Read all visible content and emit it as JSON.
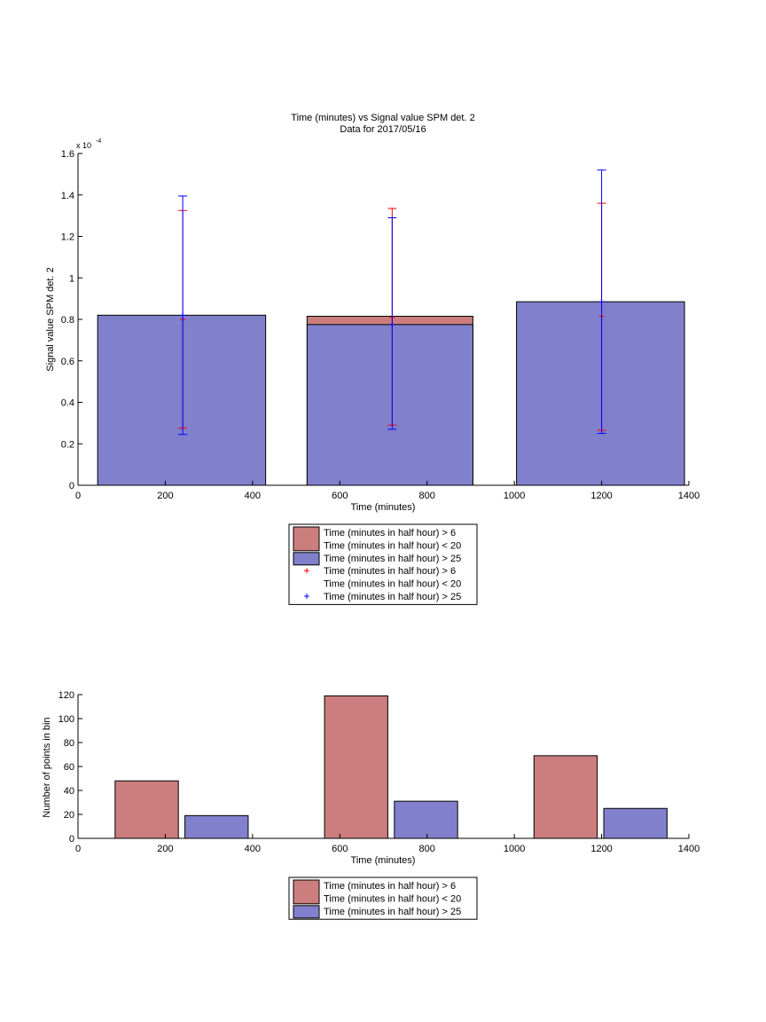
{
  "chart_data": [
    {
      "type": "bar",
      "title": "Time (minutes) vs Signal value SPM det. 2",
      "subtitle": "Data for 2017/05/16",
      "xlabel": "Time (minutes)",
      "ylabel": "Signal value SPM det. 2",
      "y_exponent_label": "x 10",
      "y_exponent_power": "-4",
      "xlim": [
        0,
        1400
      ],
      "ylim": [
        0,
        1.6
      ],
      "xticks": [
        0,
        200,
        400,
        600,
        800,
        1000,
        1200,
        1400
      ],
      "yticks": [
        0,
        0.2,
        0.4,
        0.6,
        0.8,
        1,
        1.2,
        1.4,
        1.6
      ],
      "grid": false,
      "legend_position": "below",
      "bars": [
        {
          "x_start": 45,
          "x_end": 430,
          "value_red": 0.82,
          "value_blue": 0.82
        },
        {
          "x_start": 525,
          "x_end": 905,
          "value_red": 0.815,
          "value_blue": 0.775
        },
        {
          "x_start": 1005,
          "x_end": 1390,
          "value_red": 0.885,
          "value_blue": 0.885
        }
      ],
      "error_bars": [
        {
          "series": "red",
          "x": 240,
          "center": 0.8,
          "low": 0.275,
          "high": 1.325
        },
        {
          "series": "blue",
          "x": 240,
          "center": 0.82,
          "low": 0.245,
          "high": 1.395
        },
        {
          "series": "red",
          "x": 720,
          "center": 0.81,
          "low": 0.29,
          "high": 1.335
        },
        {
          "series": "blue",
          "x": 720,
          "center": 0.775,
          "low": 0.27,
          "high": 1.29
        },
        {
          "series": "red",
          "x": 1200,
          "center": 0.815,
          "low": 0.265,
          "high": 1.36
        },
        {
          "series": "blue",
          "x": 1200,
          "center": 0.885,
          "low": 0.25,
          "high": 1.52
        }
      ],
      "legend": [
        {
          "kind": "patch",
          "color": "red",
          "lines": [
            "Time (minutes in half hour) > 6",
            "Time (minutes in half hour) < 20"
          ]
        },
        {
          "kind": "patch",
          "color": "blue",
          "lines": [
            "Time (minutes in half hour) > 25"
          ]
        },
        {
          "kind": "marker",
          "color": "red",
          "lines": [
            "Time (minutes in half hour) > 6",
            "Time (minutes in half hour) < 20"
          ]
        },
        {
          "kind": "marker",
          "color": "blue",
          "lines": [
            "Time (minutes in half hour) > 25"
          ]
        }
      ]
    },
    {
      "type": "bar",
      "xlabel": "Time (minutes)",
      "ylabel": "Number of points in bin",
      "xlim": [
        0,
        1400
      ],
      "ylim": [
        0,
        120
      ],
      "xticks": [
        0,
        200,
        400,
        600,
        800,
        1000,
        1200,
        1400
      ],
      "yticks": [
        0,
        20,
        40,
        60,
        80,
        100,
        120
      ],
      "grid": false,
      "legend_position": "below",
      "series": [
        {
          "color": "red",
          "bars": [
            {
              "x_start": 85,
              "x_end": 230,
              "value": 48
            },
            {
              "x_start": 565,
              "x_end": 710,
              "value": 119
            },
            {
              "x_start": 1045,
              "x_end": 1190,
              "value": 69
            }
          ]
        },
        {
          "color": "blue",
          "bars": [
            {
              "x_start": 245,
              "x_end": 390,
              "value": 19
            },
            {
              "x_start": 725,
              "x_end": 870,
              "value": 31
            },
            {
              "x_start": 1205,
              "x_end": 1350,
              "value": 25
            }
          ]
        }
      ],
      "legend": [
        {
          "kind": "patch",
          "color": "red",
          "lines": [
            "Time (minutes in half hour) > 6",
            "Time (minutes in half hour) < 20"
          ]
        },
        {
          "kind": "patch",
          "color": "blue",
          "lines": [
            "Time (minutes in half hour) > 25"
          ]
        }
      ]
    }
  ],
  "colors": {
    "red_fill": "#cc7d7d",
    "blue_fill": "#8080cc",
    "red_marker": "#ff0000",
    "blue_marker": "#0000ff"
  }
}
